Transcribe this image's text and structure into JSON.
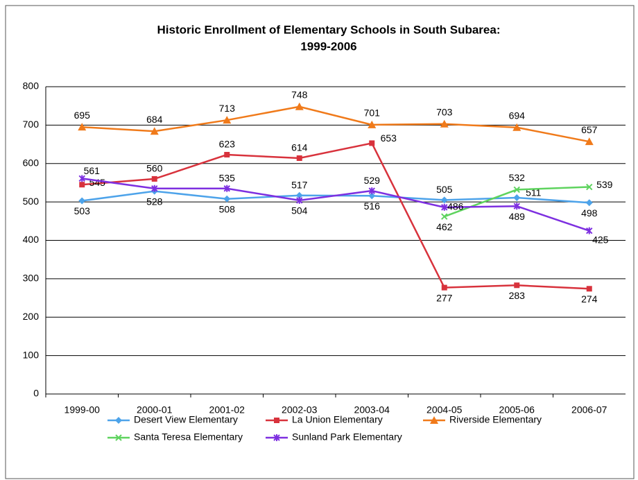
{
  "chart_data": {
    "type": "line",
    "title": [
      "Historic Enrollment of Elementary Schools in South Subarea:",
      "1999-2006"
    ],
    "categories": [
      "1999-00",
      "2000-01",
      "2001-02",
      "2002-03",
      "2003-04",
      "2004-05",
      "2005-06",
      "2006-07"
    ],
    "series": [
      {
        "name": "Desert View Elementary",
        "color": "#4da3ea",
        "marker": "diamond",
        "values": [
          503,
          528,
          508,
          517,
          516,
          505,
          511,
          498
        ]
      },
      {
        "name": "La Union Elementary",
        "color": "#d8323c",
        "marker": "square",
        "values": [
          545,
          560,
          623,
          614,
          653,
          277,
          283,
          274
        ]
      },
      {
        "name": "Riverside Elementary",
        "color": "#f07a1a",
        "marker": "triangle",
        "values": [
          695,
          684,
          713,
          748,
          701,
          703,
          694,
          657
        ]
      },
      {
        "name": "Santa Teresa Elementary",
        "color": "#5ed35e",
        "marker": "x",
        "values": [
          null,
          null,
          null,
          null,
          null,
          462,
          532,
          539
        ]
      },
      {
        "name": "Sunland Park Elementary",
        "color": "#7d2fe0",
        "marker": "star",
        "values": [
          561,
          535,
          535,
          504,
          529,
          486,
          489,
          425
        ],
        "value_labels": [
          "561",
          null,
          "535",
          "504",
          "529",
          "486",
          "489",
          "425"
        ]
      }
    ],
    "ylim": [
      0,
      800
    ],
    "yticks": [
      0,
      100,
      200,
      300,
      400,
      500,
      600,
      700,
      800
    ],
    "grid": true,
    "legend": "bottom"
  }
}
